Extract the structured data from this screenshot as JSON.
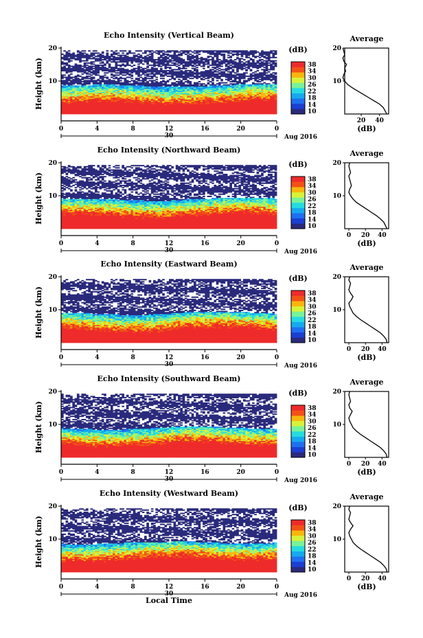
{
  "chart_data": {
    "type": "heatmap",
    "panels": [
      {
        "title": "Echo Intensity (Vertical Beam)",
        "profile": [
          [
            0,
            48
          ],
          [
            1,
            46
          ],
          [
            2,
            44
          ],
          [
            3,
            40
          ],
          [
            4,
            34
          ],
          [
            5,
            28
          ],
          [
            6,
            22
          ],
          [
            7,
            16
          ],
          [
            8,
            10
          ],
          [
            9,
            5
          ],
          [
            10,
            2
          ],
          [
            11,
            0
          ],
          [
            12,
            1
          ],
          [
            13,
            3
          ],
          [
            14,
            2
          ],
          [
            15,
            4
          ],
          [
            16,
            1
          ],
          [
            17,
            0
          ],
          [
            18,
            2
          ],
          [
            19,
            1
          ],
          [
            20,
            0
          ]
        ]
      },
      {
        "title": "Echo Intensity (Northward Beam)",
        "profile": [
          [
            0,
            46
          ],
          [
            1,
            44
          ],
          [
            2,
            42
          ],
          [
            3,
            38
          ],
          [
            4,
            33
          ],
          [
            5,
            27
          ],
          [
            6,
            21
          ],
          [
            7,
            15
          ],
          [
            8,
            9
          ],
          [
            9,
            5
          ],
          [
            10,
            2
          ],
          [
            11,
            0
          ],
          [
            12,
            1
          ],
          [
            13,
            3
          ],
          [
            14,
            2
          ],
          [
            15,
            1
          ],
          [
            16,
            0
          ],
          [
            17,
            2
          ],
          [
            18,
            1
          ],
          [
            19,
            0
          ],
          [
            20,
            1
          ]
        ]
      },
      {
        "title": "Echo Intensity (Eastward Beam)",
        "profile": [
          [
            0,
            46
          ],
          [
            1,
            45
          ],
          [
            2,
            42
          ],
          [
            3,
            38
          ],
          [
            4,
            32
          ],
          [
            5,
            26
          ],
          [
            6,
            20
          ],
          [
            7,
            14
          ],
          [
            8,
            9
          ],
          [
            9,
            5
          ],
          [
            10,
            3
          ],
          [
            11,
            1
          ],
          [
            12,
            0
          ],
          [
            13,
            3
          ],
          [
            14,
            5
          ],
          [
            15,
            2
          ],
          [
            16,
            0
          ],
          [
            17,
            1
          ],
          [
            18,
            2
          ],
          [
            19,
            0
          ],
          [
            20,
            1
          ]
        ]
      },
      {
        "title": "Echo Intensity (Southward Beam)",
        "profile": [
          [
            0,
            46
          ],
          [
            1,
            45
          ],
          [
            2,
            42
          ],
          [
            3,
            38
          ],
          [
            4,
            32
          ],
          [
            5,
            26
          ],
          [
            6,
            20
          ],
          [
            7,
            14
          ],
          [
            8,
            9
          ],
          [
            9,
            5
          ],
          [
            10,
            3
          ],
          [
            11,
            1
          ],
          [
            12,
            0
          ],
          [
            13,
            2
          ],
          [
            14,
            4
          ],
          [
            15,
            1
          ],
          [
            16,
            0
          ],
          [
            17,
            2
          ],
          [
            18,
            1
          ],
          [
            19,
            0
          ],
          [
            20,
            1
          ]
        ]
      },
      {
        "title": "Echo Intensity (Westward Beam)",
        "profile": [
          [
            0,
            46
          ],
          [
            1,
            45
          ],
          [
            2,
            42
          ],
          [
            3,
            38
          ],
          [
            4,
            32
          ],
          [
            5,
            26
          ],
          [
            6,
            20
          ],
          [
            7,
            14
          ],
          [
            8,
            9
          ],
          [
            9,
            5
          ],
          [
            10,
            3
          ],
          [
            11,
            1
          ],
          [
            12,
            0
          ],
          [
            13,
            2
          ],
          [
            14,
            5
          ],
          [
            15,
            2
          ],
          [
            16,
            0
          ],
          [
            17,
            1
          ],
          [
            18,
            2
          ],
          [
            19,
            0
          ],
          [
            20,
            1
          ]
        ]
      }
    ],
    "ylabel": "Height (km)",
    "x_ticks": [
      "0",
      "4",
      "8",
      "12",
      "16",
      "20",
      "0"
    ],
    "y_ticks": [
      "20",
      "10"
    ],
    "date_tick": "30",
    "date_label": "Aug 2016",
    "xlabel": "Local Time",
    "colorbar_label": "(dB)",
    "colorbar_ticks": [
      "38",
      "34",
      "30",
      "26",
      "22",
      "18",
      "14",
      "10"
    ],
    "average_title": "Average",
    "average_xlabel": "(dB)",
    "average_x_ticks_panel1": [
      "20",
      "40"
    ],
    "average_x_ticks_other": [
      "0",
      "20",
      "40"
    ],
    "colors": [
      "#2a2a7c",
      "#1b3fd1",
      "#1f6ff0",
      "#16a9ee",
      "#26dbe0",
      "#79f299",
      "#d8f23a",
      "#f8b60e",
      "#f25216",
      "#ee2b2b"
    ]
  }
}
